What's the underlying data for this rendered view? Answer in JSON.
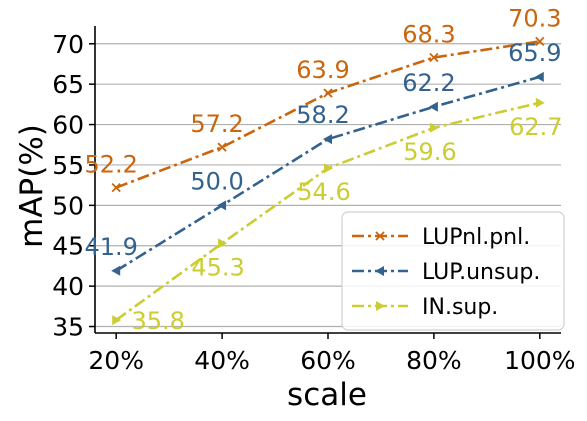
{
  "chart_data": {
    "type": "line",
    "title": "",
    "xlabel": "scale",
    "ylabel": "mAP(%)",
    "categories": [
      "20%",
      "40%",
      "60%",
      "80%",
      "100%"
    ],
    "x": [
      20,
      40,
      60,
      80,
      100
    ],
    "ylim": [
      34.2,
      72.2
    ],
    "yticks": [
      35,
      40,
      45,
      50,
      55,
      60,
      65,
      70
    ],
    "grid": "horizontal",
    "legend_position": "bottom-right",
    "series": [
      {
        "name": "LUPnl.pnl.",
        "values": [
          52.2,
          57.2,
          63.9,
          68.3,
          70.3
        ],
        "labels": [
          "52.2",
          "57.2",
          "63.9",
          "68.3",
          "70.3"
        ],
        "color": "#c9660e",
        "linestyle": "dashdot",
        "marker": "x"
      },
      {
        "name": "LUP.unsup.",
        "values": [
          41.9,
          50.0,
          58.2,
          62.2,
          65.9
        ],
        "labels": [
          "41.9",
          "50.0",
          "58.2",
          "62.2",
          "65.9"
        ],
        "color": "#33628f",
        "linestyle": "dashdot",
        "marker": "triangle-left"
      },
      {
        "name": "IN.sup.",
        "values": [
          35.8,
          45.3,
          54.6,
          59.6,
          62.7
        ],
        "labels": [
          "35.8",
          "45.3",
          "54.6",
          "59.6",
          "62.7"
        ],
        "color": "#cccc33",
        "linestyle": "dashdot",
        "marker": "triangle-right"
      }
    ]
  }
}
